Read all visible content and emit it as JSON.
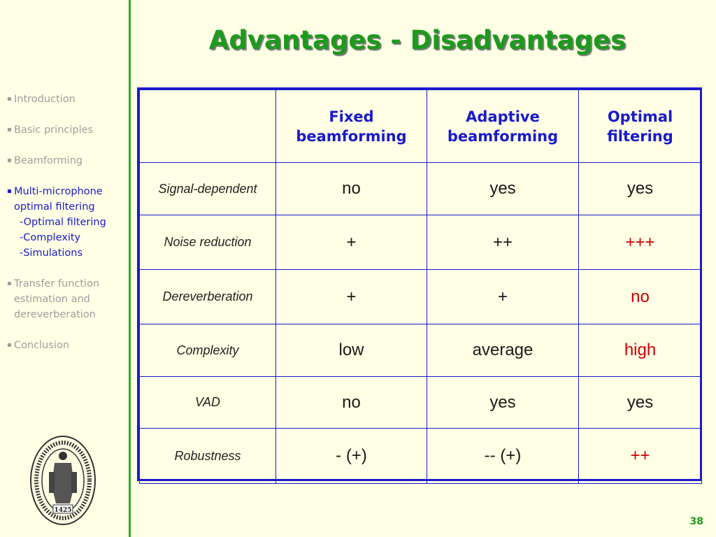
{
  "slide": {
    "title": "Advantages - Disadvantages",
    "page_number": "38"
  },
  "nav": {
    "items": [
      {
        "label": "Introduction"
      },
      {
        "label": "Basic principles"
      },
      {
        "label": "Beamforming"
      },
      {
        "label": "Multi-microphone",
        "label2": "optimal filtering",
        "subitems": [
          "-Optimal filtering",
          "-Complexity",
          "-Simulations"
        ]
      },
      {
        "label": "Transfer function",
        "label2": "estimation and",
        "label3": "dereverberation"
      },
      {
        "label": "Conclusion"
      }
    ]
  },
  "seal": {
    "year": "1425"
  },
  "table": {
    "headers": [
      {
        "line1": "Fixed",
        "line2": "beamforming"
      },
      {
        "line1": "Adaptive",
        "line2": "beamforming"
      },
      {
        "line1": "Optimal",
        "line2": "filtering"
      }
    ],
    "rows": [
      {
        "label": "Signal-dependent",
        "values": [
          "no",
          "yes",
          "yes"
        ]
      },
      {
        "label": "Noise reduction",
        "values": [
          "+",
          "++",
          "+++"
        ]
      },
      {
        "label": "Dereverberation",
        "values": [
          "+",
          "+",
          "no"
        ]
      },
      {
        "label": "Complexity",
        "values": [
          "low",
          "average",
          "high"
        ]
      },
      {
        "label": "VAD",
        "values": [
          "no",
          "yes",
          "yes"
        ]
      },
      {
        "label": "Robustness",
        "values": [
          "- (+)",
          "-- (+)",
          "++"
        ]
      }
    ]
  },
  "colors": {
    "background": "#FFFFE5",
    "title": "#1C9A1C",
    "table_border": "#1A1ACC",
    "highlight": "#CC0000",
    "nav_inactive": "#9E9E9E",
    "nav_active": "#1A1ACC"
  }
}
